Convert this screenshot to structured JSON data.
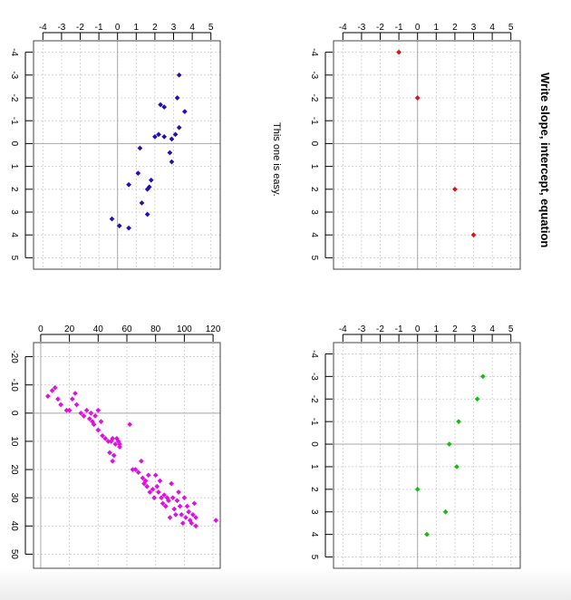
{
  "heading": "Write slope, intercept, equation",
  "note": "This one is easy.",
  "colors": {
    "grid": "#cccccc",
    "zero_line": "#aaaaaa",
    "frame": "#444444"
  },
  "chart_data": [
    {
      "type": "scatter",
      "name": "top-left",
      "color": "#1f0fb5",
      "xlim": [
        -4.5,
        5.5
      ],
      "ylim": [
        -4.5,
        5.5
      ],
      "x_ticks": [
        -4,
        -3,
        -2,
        -1,
        0,
        1,
        2,
        3,
        4,
        5
      ],
      "y_ticks": [
        -4,
        -3,
        -2,
        -1,
        0,
        1,
        2,
        3,
        4,
        5
      ],
      "grid": true,
      "points": [
        {
          "x": 3.3,
          "y": -3.0
        },
        {
          "x": 3.2,
          "y": -2.0
        },
        {
          "x": 3.6,
          "y": -1.4
        },
        {
          "x": 2.3,
          "y": -1.7
        },
        {
          "x": 2.5,
          "y": -1.6
        },
        {
          "x": 3.3,
          "y": -0.7
        },
        {
          "x": 3.1,
          "y": -0.4
        },
        {
          "x": 2.2,
          "y": -0.4
        },
        {
          "x": 2.0,
          "y": -0.3
        },
        {
          "x": 2.5,
          "y": -0.3
        },
        {
          "x": 2.9,
          "y": -0.2
        },
        {
          "x": 1.2,
          "y": 0.2
        },
        {
          "x": 2.8,
          "y": 0.4
        },
        {
          "x": 2.9,
          "y": 0.8
        },
        {
          "x": 1.1,
          "y": 1.3
        },
        {
          "x": 1.8,
          "y": 1.6
        },
        {
          "x": 1.7,
          "y": 1.9
        },
        {
          "x": 1.6,
          "y": 2.0
        },
        {
          "x": 0.6,
          "y": 1.8
        },
        {
          "x": 1.3,
          "y": 2.6
        },
        {
          "x": 1.6,
          "y": 3.1
        },
        {
          "x": -0.3,
          "y": 3.3
        },
        {
          "x": 0.1,
          "y": 3.6
        },
        {
          "x": 0.6,
          "y": 3.7
        }
      ]
    },
    {
      "type": "scatter",
      "name": "top-right",
      "color": "#e01010",
      "xlim": [
        -4.5,
        5.5
      ],
      "ylim": [
        -4.5,
        5.5
      ],
      "x_ticks": [
        -4,
        -3,
        -2,
        -1,
        0,
        1,
        2,
        3,
        4,
        5
      ],
      "y_ticks": [
        -4,
        -3,
        -2,
        -1,
        0,
        1,
        2,
        3,
        4,
        5
      ],
      "grid": true,
      "points": [
        {
          "x": -1,
          "y": -4
        },
        {
          "x": 0,
          "y": -2
        },
        {
          "x": 2,
          "y": 2
        },
        {
          "x": 3,
          "y": 4
        }
      ]
    },
    {
      "type": "scatter",
      "name": "bottom-left",
      "color": "#e010e0",
      "xlim": [
        -5,
        125
      ],
      "ylim": [
        -25,
        55
      ],
      "x_ticks": [
        0,
        20,
        40,
        60,
        80,
        100,
        120
      ],
      "y_ticks": [
        -20,
        -10,
        0,
        10,
        20,
        30,
        40,
        50
      ],
      "grid": true,
      "points": [
        {
          "x": 5,
          "y": -6
        },
        {
          "x": 8,
          "y": -8
        },
        {
          "x": 10,
          "y": -9
        },
        {
          "x": 12,
          "y": -5
        },
        {
          "x": 14,
          "y": -3
        },
        {
          "x": 18,
          "y": -1
        },
        {
          "x": 20,
          "y": -1
        },
        {
          "x": 22,
          "y": -5
        },
        {
          "x": 24,
          "y": -7
        },
        {
          "x": 25,
          "y": -3
        },
        {
          "x": 28,
          "y": 0
        },
        {
          "x": 30,
          "y": 1
        },
        {
          "x": 32,
          "y": -1
        },
        {
          "x": 34,
          "y": 2
        },
        {
          "x": 35,
          "y": 0
        },
        {
          "x": 36,
          "y": 3
        },
        {
          "x": 37,
          "y": 4
        },
        {
          "x": 38,
          "y": 1
        },
        {
          "x": 40,
          "y": -1
        },
        {
          "x": 40,
          "y": 6
        },
        {
          "x": 42,
          "y": 3
        },
        {
          "x": 43,
          "y": 8
        },
        {
          "x": 45,
          "y": 9
        },
        {
          "x": 47,
          "y": 10
        },
        {
          "x": 48,
          "y": 14
        },
        {
          "x": 49,
          "y": 10
        },
        {
          "x": 50,
          "y": 17
        },
        {
          "x": 51,
          "y": 15
        },
        {
          "x": 52,
          "y": 11
        },
        {
          "x": 53,
          "y": 9
        },
        {
          "x": 54,
          "y": 10
        },
        {
          "x": 55,
          "y": 11
        },
        {
          "x": 55,
          "y": 12
        },
        {
          "x": 50,
          "y": 9
        },
        {
          "x": 62,
          "y": 4
        },
        {
          "x": 64,
          "y": 20
        },
        {
          "x": 66,
          "y": 20
        },
        {
          "x": 68,
          "y": 21
        },
        {
          "x": 70,
          "y": 17
        },
        {
          "x": 71,
          "y": 23
        },
        {
          "x": 72,
          "y": 25
        },
        {
          "x": 73,
          "y": 24
        },
        {
          "x": 74,
          "y": 26
        },
        {
          "x": 75,
          "y": 22
        },
        {
          "x": 76,
          "y": 28
        },
        {
          "x": 78,
          "y": 27
        },
        {
          "x": 79,
          "y": 30
        },
        {
          "x": 80,
          "y": 22
        },
        {
          "x": 81,
          "y": 26
        },
        {
          "x": 82,
          "y": 28
        },
        {
          "x": 83,
          "y": 24
        },
        {
          "x": 84,
          "y": 30
        },
        {
          "x": 85,
          "y": 32
        },
        {
          "x": 86,
          "y": 29
        },
        {
          "x": 87,
          "y": 33
        },
        {
          "x": 88,
          "y": 30
        },
        {
          "x": 89,
          "y": 31
        },
        {
          "x": 90,
          "y": 37
        },
        {
          "x": 91,
          "y": 25
        },
        {
          "x": 92,
          "y": 30
        },
        {
          "x": 93,
          "y": 34
        },
        {
          "x": 94,
          "y": 36
        },
        {
          "x": 95,
          "y": 31
        },
        {
          "x": 96,
          "y": 28
        },
        {
          "x": 97,
          "y": 33
        },
        {
          "x": 98,
          "y": 36
        },
        {
          "x": 99,
          "y": 39
        },
        {
          "x": 100,
          "y": 30
        },
        {
          "x": 101,
          "y": 37
        },
        {
          "x": 102,
          "y": 33
        },
        {
          "x": 103,
          "y": 35
        },
        {
          "x": 104,
          "y": 38
        },
        {
          "x": 105,
          "y": 39
        },
        {
          "x": 106,
          "y": 36
        },
        {
          "x": 107,
          "y": 32
        },
        {
          "x": 108,
          "y": 37
        },
        {
          "x": 108,
          "y": 40
        },
        {
          "x": 122,
          "y": 38
        }
      ]
    },
    {
      "type": "scatter",
      "name": "bottom-right",
      "color": "#10c010",
      "xlim": [
        -4.5,
        5.5
      ],
      "ylim": [
        -4.5,
        5.5
      ],
      "x_ticks": [
        -4,
        -3,
        -2,
        -1,
        0,
        1,
        2,
        3,
        4,
        5
      ],
      "y_ticks": [
        -4,
        -3,
        -2,
        -1,
        0,
        1,
        2,
        3,
        4,
        5
      ],
      "grid": true,
      "points": [
        {
          "x": 3.5,
          "y": -3
        },
        {
          "x": 3.2,
          "y": -2
        },
        {
          "x": 2.2,
          "y": -1
        },
        {
          "x": 1.7,
          "y": 0
        },
        {
          "x": 2.1,
          "y": 1
        },
        {
          "x": 0,
          "y": 2
        },
        {
          "x": 1.5,
          "y": 3
        },
        {
          "x": 0.5,
          "y": 4
        }
      ]
    }
  ]
}
